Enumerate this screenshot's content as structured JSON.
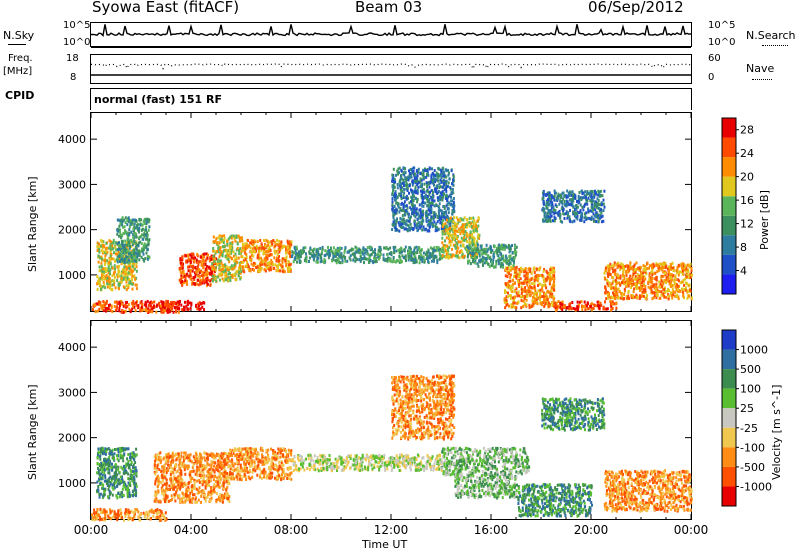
{
  "header": {
    "station": "Syowa East (fitACF)",
    "beam": "Beam 03",
    "date": "06/Sep/2012"
  },
  "labels": {
    "nsky": "N.Sky",
    "nsearch": "N.Search",
    "freq": "Freq.",
    "mhz": "[MHz]",
    "cpid": "CPID",
    "nave": "Nave",
    "cpid_value": "normal (fast) 151 RF",
    "n_top_left": "10^5",
    "n_bot_left": "10^0",
    "n_top_right": "10^5",
    "n_bot_right": "10^0",
    "f_top_left": "18",
    "f_bot_left": "8",
    "f_top_right": "60",
    "f_bot_right": "0"
  },
  "colors": {
    "power_scale": [
      "#1e1ef0",
      "#1e50c8",
      "#2e7da0",
      "#3c9060",
      "#5ab45a",
      "#e0c81e",
      "#ff8c00",
      "#ff4a00",
      "#e80000"
    ],
    "velocity_scale": [
      "#1e3cc8",
      "#2e6ea0",
      "#3c8c50",
      "#5abe32",
      "#c8c8c0",
      "#f0c850",
      "#ff8c14",
      "#ff5000",
      "#e80000"
    ]
  },
  "chart_data": [
    {
      "type": "heatmap",
      "title": "",
      "xlabel": "Time UT",
      "ylabel": "Slant Range [km]",
      "x_ticks": [
        "00:00",
        "04:00",
        "08:00",
        "12:00",
        "16:00",
        "20:00",
        "00:00"
      ],
      "x_range_hours": [
        0,
        24
      ],
      "ylim": [
        180,
        4600
      ],
      "y_ticks": [
        1000,
        2000,
        3000,
        4000
      ],
      "colorbar": {
        "label": "Power [dB]",
        "ticks": [
          4,
          8,
          12,
          16,
          20,
          24,
          28
        ],
        "range": [
          0,
          30
        ]
      },
      "regions": [
        {
          "t0": 0.0,
          "t1": 3.5,
          "r0": 200,
          "r1": 450,
          "level": 7
        },
        {
          "t0": 0.2,
          "t1": 1.8,
          "r0": 700,
          "r1": 1800,
          "level": 5
        },
        {
          "t0": 1.0,
          "t1": 2.3,
          "r0": 1300,
          "r1": 2300,
          "level": 3
        },
        {
          "t0": 2.8,
          "t1": 4.5,
          "r0": 250,
          "r1": 450,
          "level": 8
        },
        {
          "t0": 3.5,
          "t1": 5.0,
          "r0": 800,
          "r1": 1500,
          "level": 7
        },
        {
          "t0": 4.8,
          "t1": 6.0,
          "r0": 900,
          "r1": 1900,
          "level": 5
        },
        {
          "t0": 6.0,
          "t1": 8.0,
          "r0": 1100,
          "r1": 1800,
          "level": 6
        },
        {
          "t0": 8.0,
          "t1": 14.0,
          "r0": 1300,
          "r1": 1650,
          "level": 3
        },
        {
          "t0": 12.0,
          "t1": 14.5,
          "r0": 2000,
          "r1": 3400,
          "level": 2
        },
        {
          "t0": 14.0,
          "t1": 15.5,
          "r0": 1400,
          "r1": 2300,
          "level": 5
        },
        {
          "t0": 15.0,
          "t1": 17.0,
          "r0": 1200,
          "r1": 1700,
          "level": 3
        },
        {
          "t0": 16.5,
          "t1": 18.5,
          "r0": 300,
          "r1": 1200,
          "level": 6
        },
        {
          "t0": 18.5,
          "t1": 21.0,
          "r0": 250,
          "r1": 450,
          "level": 7
        },
        {
          "t0": 18.0,
          "t1": 20.5,
          "r0": 2200,
          "r1": 2900,
          "level": 2
        },
        {
          "t0": 20.5,
          "t1": 24.0,
          "r0": 500,
          "r1": 1300,
          "level": 6
        }
      ]
    },
    {
      "type": "heatmap",
      "title": "",
      "xlabel": "Time UT",
      "ylabel": "Slant Range [km]",
      "x_ticks": [
        "00:00",
        "04:00",
        "08:00",
        "12:00",
        "16:00",
        "20:00",
        "00:00"
      ],
      "x_range_hours": [
        0,
        24
      ],
      "ylim": [
        180,
        4600
      ],
      "y_ticks": [
        1000,
        2000,
        3000,
        4000
      ],
      "colorbar": {
        "label": "Velocity [m s^-1]",
        "ticks": [
          1000,
          500,
          100,
          25,
          -25,
          -100,
          -500,
          -1000
        ]
      },
      "regions": [
        {
          "t0": 0.0,
          "t1": 3.0,
          "r0": 200,
          "r1": 450,
          "level": 6
        },
        {
          "t0": 0.2,
          "t1": 1.8,
          "r0": 700,
          "r1": 1800,
          "level": 2
        },
        {
          "t0": 2.5,
          "t1": 5.5,
          "r0": 600,
          "r1": 1700,
          "level": 6
        },
        {
          "t0": 5.5,
          "t1": 8.0,
          "r0": 1100,
          "r1": 1800,
          "level": 6
        },
        {
          "t0": 8.0,
          "t1": 14.0,
          "r0": 1300,
          "r1": 1650,
          "level": 4
        },
        {
          "t0": 12.0,
          "t1": 14.5,
          "r0": 2000,
          "r1": 3400,
          "level": 6
        },
        {
          "t0": 14.0,
          "t1": 17.5,
          "r0": 1200,
          "r1": 1800,
          "level": 3
        },
        {
          "t0": 14.5,
          "t1": 17.0,
          "r0": 700,
          "r1": 1200,
          "level": 3
        },
        {
          "t0": 17.0,
          "t1": 20.0,
          "r0": 300,
          "r1": 1000,
          "level": 2
        },
        {
          "t0": 18.0,
          "t1": 20.5,
          "r0": 2200,
          "r1": 2900,
          "level": 2
        },
        {
          "t0": 20.5,
          "t1": 24.0,
          "r0": 400,
          "r1": 1300,
          "level": 6
        }
      ]
    }
  ]
}
